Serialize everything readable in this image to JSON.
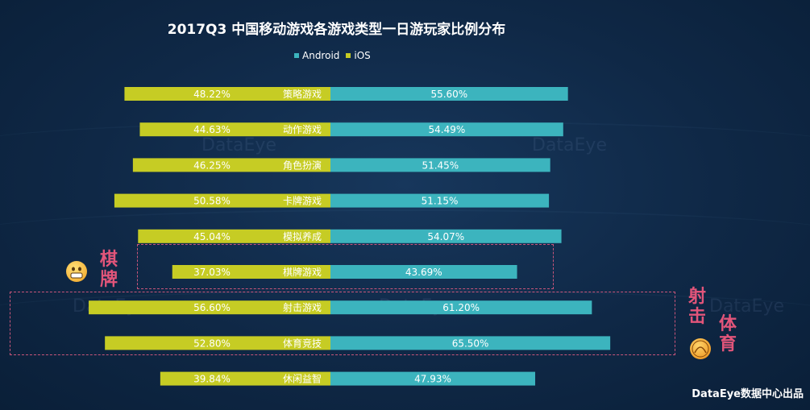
{
  "title": "2017Q3 中国移动游戏各游戏类型一日游玩家比例分布",
  "legend": {
    "android": "Android",
    "ios": "iOS"
  },
  "colors": {
    "android": "#3cb4be",
    "ios": "#c6cc24",
    "background": "#0c2240",
    "annotation": "#e2557a"
  },
  "watermark": "DataEye",
  "source": "DataEye数据中心出品",
  "annotations": {
    "qipai": "棋牌",
    "sheji": "射击",
    "tiyu": "体育"
  },
  "icons": [
    "grinning-face-icon",
    "sports-ball-icon"
  ],
  "chart_data": {
    "type": "bar",
    "orientation": "horizontal-diverging",
    "categories": [
      "策略游戏",
      "动作游戏",
      "角色扮演",
      "卡牌游戏",
      "模拟养成",
      "棋牌游戏",
      "射击游戏",
      "体育竞技",
      "休闲益智"
    ],
    "series": [
      {
        "name": "iOS",
        "values": [
          48.22,
          44.63,
          46.25,
          50.58,
          45.04,
          37.03,
          56.6,
          52.8,
          39.84
        ],
        "labels": [
          "48.22%",
          "44.63%",
          "46.25%",
          "50.58%",
          "45.04%",
          "37.03%",
          "56.60%",
          "52.80%",
          "39.84%"
        ]
      },
      {
        "name": "Android",
        "values": [
          55.6,
          54.49,
          51.45,
          51.15,
          54.07,
          43.69,
          61.2,
          65.5,
          47.93
        ],
        "labels": [
          "55.60%",
          "54.49%",
          "51.45%",
          "51.15%",
          "54.07%",
          "43.69%",
          "61.20%",
          "65.50%",
          "47.93%"
        ]
      }
    ],
    "highlighted": [
      "棋牌游戏",
      "射击游戏",
      "体育竞技"
    ]
  }
}
